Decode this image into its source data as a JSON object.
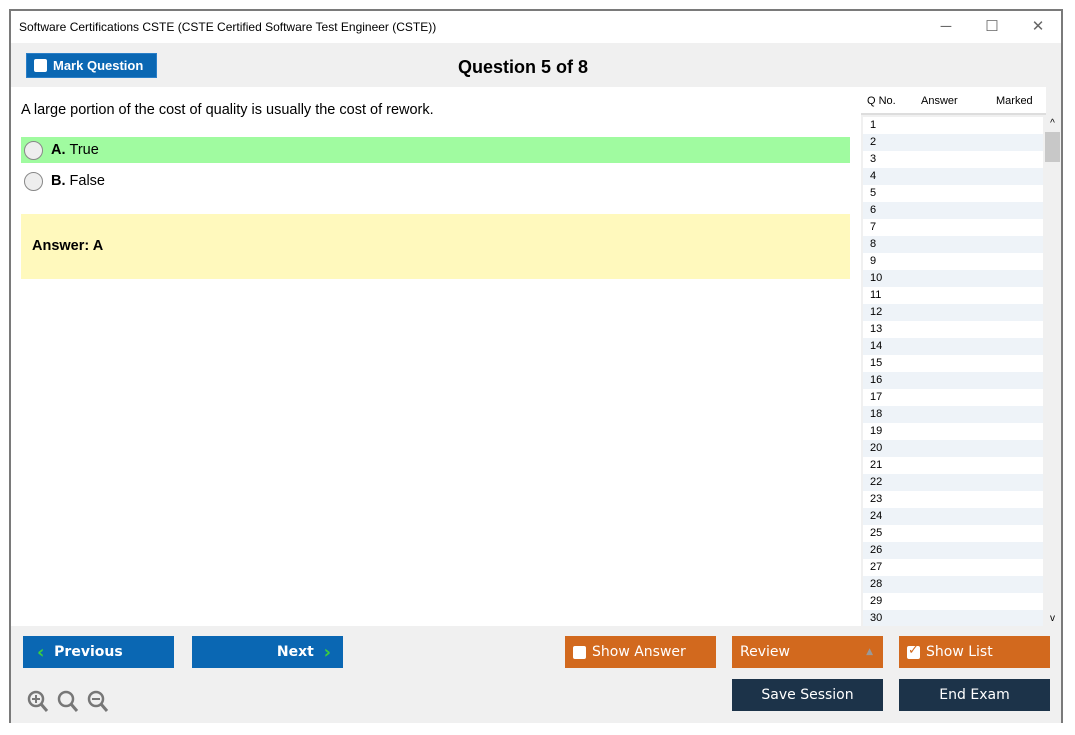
{
  "window": {
    "title": "Software Certifications CSTE (CSTE Certified Software Test Engineer (CSTE))",
    "minimize": "─",
    "maximize": "☐",
    "close": "✕"
  },
  "toolbar": {
    "mark_label": "Mark Question",
    "question_title": "Question 5 of 8"
  },
  "question": {
    "text": "A large portion of the cost of quality is usually the cost of rework.",
    "options": [
      {
        "letter": "A.",
        "text": "True",
        "highlighted": true
      },
      {
        "letter": "B.",
        "text": "False",
        "highlighted": false
      }
    ],
    "answer": "Answer: A",
    "highlight_color": "#a0fba0"
  },
  "panel": {
    "headers": [
      "Q No.",
      "Answer",
      "Marked"
    ],
    "rows": [
      "1",
      "2",
      "3",
      "4",
      "5",
      "6",
      "7",
      "8",
      "9",
      "10",
      "11",
      "12",
      "13",
      "14",
      "15",
      "16",
      "17",
      "18",
      "19",
      "20",
      "21",
      "22",
      "23",
      "24",
      "25",
      "26",
      "27",
      "28",
      "29",
      "30"
    ],
    "scroll_up": "^",
    "scroll_down": "v"
  },
  "bottom": {
    "previous": "Previous",
    "next": "Next",
    "show_answer": "Show Answer",
    "review": "Review",
    "show_list": "Show List",
    "show_list_checked": true,
    "save_session": "Save Session",
    "end_exam": "End Exam"
  },
  "colors": {
    "blue": "#0a67b3",
    "orange": "#d2691e",
    "dark": "#1c3349"
  }
}
